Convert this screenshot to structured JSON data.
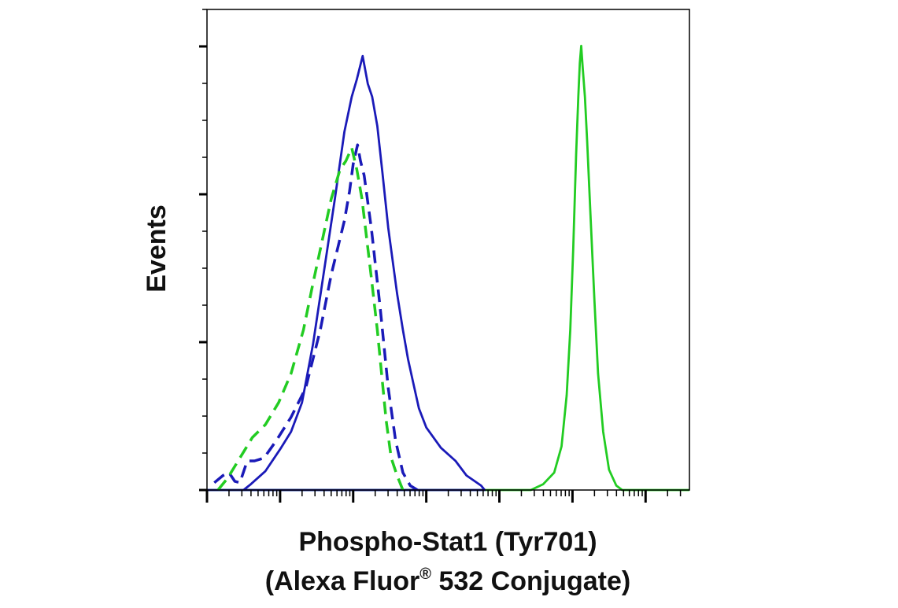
{
  "chart_data": {
    "type": "line",
    "title": "",
    "xlabel_line1": "Phospho-Stat1 (Tyr701)",
    "xlabel_line2_main": "(Alexa Fluor",
    "xlabel_line2_sup": "®",
    "xlabel_line2_rest": " 532 Conjugate)",
    "ylabel": "Events",
    "x_scale": "log",
    "xlim": [
      -2,
      4.6
    ],
    "ylim": [
      0,
      330
    ],
    "grid": false,
    "legend": "none",
    "series": [
      {
        "color": "#22cc22",
        "dash": "solid",
        "points": [
          [
            -2,
            0
          ],
          [
            2.43,
            0
          ],
          [
            2.6,
            4
          ],
          [
            2.75,
            12
          ],
          [
            2.85,
            30
          ],
          [
            2.92,
            65
          ],
          [
            2.97,
            110
          ],
          [
            3.01,
            165
          ],
          [
            3.05,
            230
          ],
          [
            3.08,
            270
          ],
          [
            3.1,
            293
          ],
          [
            3.12,
            305
          ],
          [
            3.14,
            290
          ],
          [
            3.17,
            270
          ],
          [
            3.2,
            240
          ],
          [
            3.25,
            185
          ],
          [
            3.3,
            130
          ],
          [
            3.35,
            80
          ],
          [
            3.42,
            40
          ],
          [
            3.5,
            14
          ],
          [
            3.6,
            3
          ],
          [
            3.68,
            0
          ],
          [
            4.6,
            0
          ]
        ]
      },
      {
        "color": "#1a1ab8",
        "dash": "solid",
        "points": [
          [
            -2,
            0
          ],
          [
            1.8,
            0
          ],
          [
            1.75,
            3
          ],
          [
            1.55,
            10
          ],
          [
            1.4,
            20
          ],
          [
            1.2,
            29
          ],
          [
            1.0,
            43
          ],
          [
            0.9,
            56
          ],
          [
            0.82,
            74
          ],
          [
            0.75,
            90
          ],
          [
            0.68,
            110
          ],
          [
            0.6,
            135
          ],
          [
            0.48,
            180
          ],
          [
            0.4,
            218
          ],
          [
            0.33,
            250
          ],
          [
            0.26,
            270
          ],
          [
            0.2,
            279
          ],
          [
            0.13,
            298
          ],
          [
            0.05,
            282
          ],
          [
            -0.02,
            270
          ],
          [
            -0.12,
            246
          ],
          [
            -0.25,
            200
          ],
          [
            -0.4,
            150
          ],
          [
            -0.55,
            100
          ],
          [
            -0.7,
            60
          ],
          [
            -0.85,
            40
          ],
          [
            -1.0,
            28
          ],
          [
            -1.2,
            13
          ],
          [
            -1.4,
            4
          ],
          [
            -1.5,
            0
          ]
        ]
      },
      {
        "color": "#1a1ab8",
        "dash": "dashed",
        "points": [
          [
            -1.9,
            5
          ],
          [
            -1.78,
            10
          ],
          [
            -1.7,
            12
          ],
          [
            -1.62,
            6
          ],
          [
            -1.55,
            5
          ],
          [
            -1.45,
            20
          ],
          [
            -1.35,
            20
          ],
          [
            -1.22,
            22
          ],
          [
            -1.05,
            34
          ],
          [
            -0.85,
            50
          ],
          [
            -0.65,
            70
          ],
          [
            -0.45,
            110
          ],
          [
            -0.3,
            148
          ],
          [
            -0.12,
            185
          ],
          [
            -0.05,
            205
          ],
          [
            0,
            224
          ],
          [
            0.06,
            237
          ],
          [
            0.1,
            226
          ],
          [
            0.15,
            216
          ],
          [
            0.25,
            179
          ],
          [
            0.37,
            125
          ],
          [
            0.48,
            70
          ],
          [
            0.58,
            34
          ],
          [
            0.68,
            12
          ],
          [
            0.78,
            3
          ],
          [
            0.88,
            0
          ]
        ]
      },
      {
        "color": "#22cc22",
        "dash": "dashed",
        "points": [
          [
            -1.85,
            0
          ],
          [
            -1.72,
            8
          ],
          [
            -1.55,
            22
          ],
          [
            -1.38,
            36
          ],
          [
            -1.2,
            45
          ],
          [
            -1.02,
            60
          ],
          [
            -0.85,
            80
          ],
          [
            -0.68,
            110
          ],
          [
            -0.55,
            142
          ],
          [
            -0.42,
            172
          ],
          [
            -0.3,
            200
          ],
          [
            -0.18,
            220
          ],
          [
            -0.1,
            226
          ],
          [
            -0.02,
            235
          ],
          [
            0.05,
            220
          ],
          [
            0.12,
            200
          ],
          [
            0.25,
            145
          ],
          [
            0.33,
            110
          ],
          [
            0.45,
            48
          ],
          [
            0.52,
            22
          ],
          [
            0.6,
            10
          ],
          [
            0.68,
            0
          ]
        ]
      }
    ]
  }
}
